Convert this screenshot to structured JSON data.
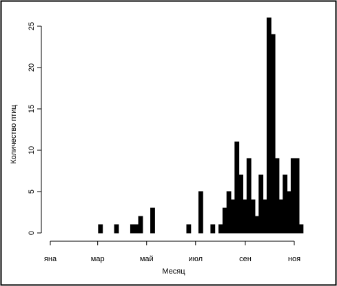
{
  "chart_data": {
    "type": "histogram",
    "xlabel": "Месяц",
    "ylabel": "Количество птиц",
    "bins": [
      60,
      65,
      70,
      75,
      80,
      85,
      90,
      95,
      100,
      105,
      110,
      115,
      120,
      125,
      130,
      135,
      140,
      145,
      150,
      155,
      160,
      165,
      170,
      175,
      180,
      185,
      190,
      195,
      200,
      205,
      210,
      215,
      220,
      225,
      230,
      235,
      240,
      245,
      250,
      255,
      260,
      265,
      270,
      275,
      280,
      285,
      290,
      295,
      300,
      305,
      310,
      315
    ],
    "counts": [
      1,
      0,
      0,
      0,
      1,
      0,
      0,
      0,
      1,
      1,
      2,
      0,
      0,
      3,
      0,
      0,
      0,
      0,
      0,
      0,
      0,
      0,
      1,
      0,
      0,
      5,
      0,
      0,
      1,
      0,
      1,
      3,
      5,
      4,
      11,
      7,
      4,
      9,
      4,
      2,
      7,
      4,
      26,
      24,
      9,
      4,
      7,
      5,
      9,
      9,
      1
    ],
    "color": "#000000",
    "xlim": [
      0,
      304
    ],
    "xticks": [
      {
        "value": 0,
        "label": "яна"
      },
      {
        "value": 59,
        "label": "мар"
      },
      {
        "value": 120,
        "label": "май"
      },
      {
        "value": 181,
        "label": "июл"
      },
      {
        "value": 243,
        "label": "сен"
      },
      {
        "value": 304,
        "label": "ноя"
      }
    ],
    "ylim": [
      0,
      26
    ],
    "yticks": [
      0,
      5,
      10,
      15,
      20,
      25
    ]
  }
}
